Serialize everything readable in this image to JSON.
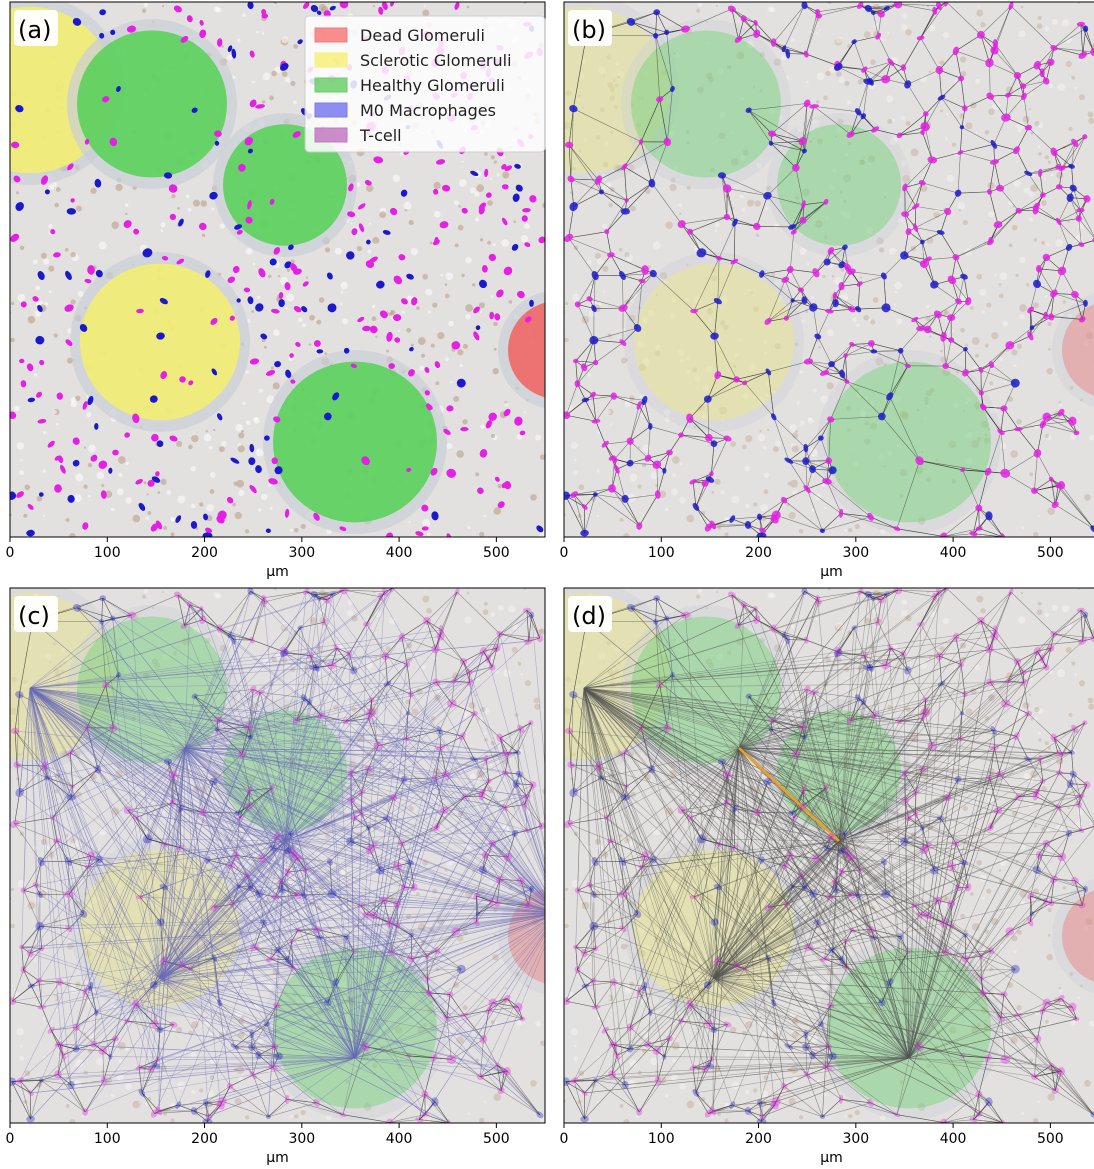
{
  "panels": [
    {
      "label": "(a)",
      "mode": "a",
      "show_legend": true
    },
    {
      "label": "(b)",
      "mode": "b",
      "show_legend": false
    },
    {
      "label": "(c)",
      "mode": "c",
      "show_legend": false
    },
    {
      "label": "(d)",
      "mode": "d",
      "show_legend": false
    }
  ],
  "x_axis": {
    "label": "µm",
    "ticks": [
      0,
      100,
      200,
      300,
      400,
      500
    ],
    "range": [
      0,
      550
    ]
  },
  "legend": [
    {
      "label": "Dead Glomeruli",
      "color": "#f47a7a"
    },
    {
      "label": "Sclerotic Glomeruli",
      "color": "#f7f07a"
    },
    {
      "label": "Healthy Glomeruli",
      "color": "#6ccf6c"
    },
    {
      "label": "M0 Macrophages",
      "color": "#7a7af0"
    },
    {
      "label": "T-cell",
      "color": "#c27ac2"
    }
  ],
  "colors": {
    "background_tissue": "#e3e1df",
    "dead": "#f2625f",
    "sclerotic": "#f4ef6b",
    "healthy": "#54d154",
    "macrophage": "#1a1acc",
    "tcell": "#e61ee6",
    "edge": "#222222",
    "hyperedge": "#6a6ab8",
    "highlight_edge": "#f0a020"
  },
  "glomeruli": [
    {
      "type": "sclerotic",
      "cx": 20,
      "cy": 88,
      "r": 85
    },
    {
      "type": "healthy",
      "cx": 142,
      "cy": 102,
      "r": 75
    },
    {
      "type": "healthy",
      "cx": 275,
      "cy": 183,
      "r": 62
    },
    {
      "type": "sclerotic",
      "cx": 150,
      "cy": 340,
      "r": 80
    },
    {
      "type": "healthy",
      "cx": 345,
      "cy": 440,
      "r": 82
    },
    {
      "type": "dead",
      "cx": 548,
      "cy": 348,
      "r": 50
    }
  ],
  "hubs_c": [
    {
      "x": 20,
      "y": 100
    },
    {
      "x": 175,
      "y": 160
    },
    {
      "x": 275,
      "y": 253
    },
    {
      "x": 150,
      "y": 390
    },
    {
      "x": 345,
      "y": 470
    },
    {
      "x": 548,
      "y": 325
    }
  ],
  "hubs_d": [
    {
      "x": 20,
      "y": 100
    },
    {
      "x": 175,
      "y": 160
    },
    {
      "x": 275,
      "y": 253
    },
    {
      "x": 150,
      "y": 390
    },
    {
      "x": 345,
      "y": 470
    }
  ],
  "highlight_edge_d": {
    "from": 1,
    "to": 2
  }
}
